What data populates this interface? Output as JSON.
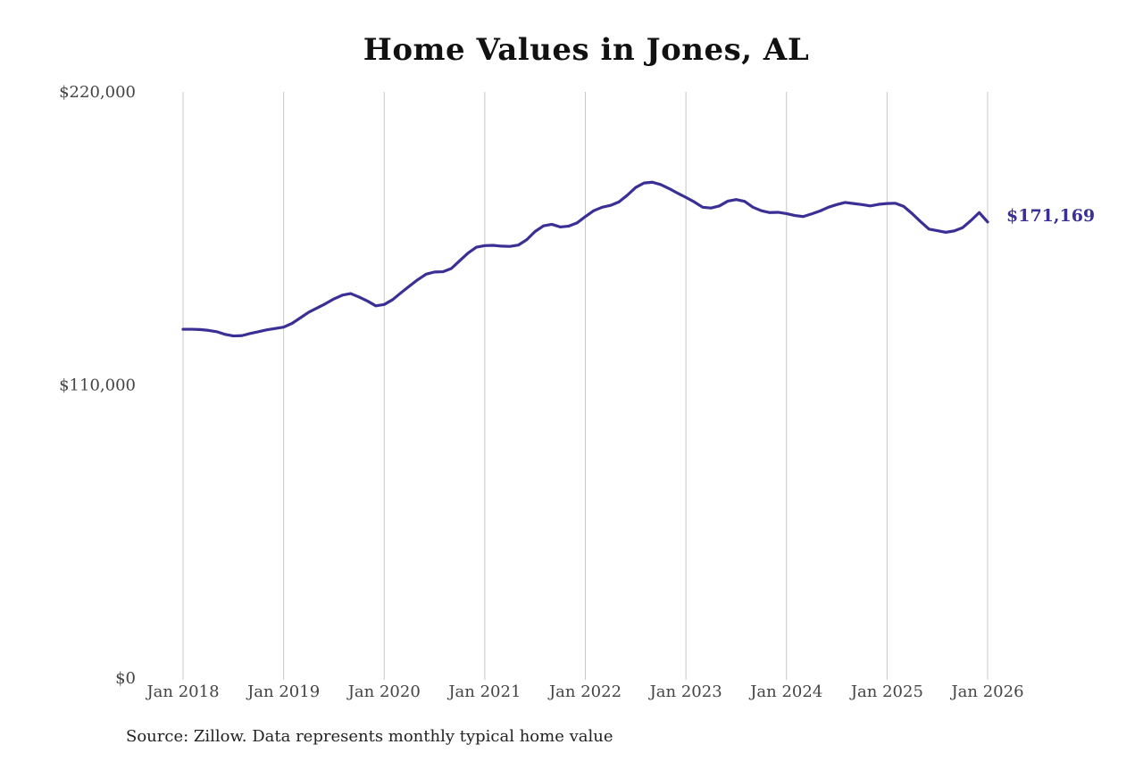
{
  "title": "Home Values in Jones, AL",
  "source": "Source: Zillow. Data represents monthly typical home value",
  "colors": {
    "line": "#3a2f95",
    "grid": "#c8c8c8",
    "axis_text": "#444444",
    "title": "#111111"
  },
  "chart_data": {
    "type": "line",
    "title": "Home Values in Jones, AL",
    "xlabel": "",
    "ylabel": "",
    "ylim": [
      0,
      220000
    ],
    "y_ticks": [
      {
        "value": 0,
        "label": "$0"
      },
      {
        "value": 110000,
        "label": "$110,000"
      },
      {
        "value": 220000,
        "label": "$220,000"
      }
    ],
    "x_ticks": [
      {
        "value": "2018-01",
        "label": "Jan 2018"
      },
      {
        "value": "2019-01",
        "label": "Jan 2019"
      },
      {
        "value": "2020-01",
        "label": "Jan 2020"
      },
      {
        "value": "2021-01",
        "label": "Jan 2021"
      },
      {
        "value": "2022-01",
        "label": "Jan 2022"
      },
      {
        "value": "2023-01",
        "label": "Jan 2023"
      },
      {
        "value": "2024-01",
        "label": "Jan 2024"
      },
      {
        "value": "2025-01",
        "label": "Jan 2025"
      },
      {
        "value": "2026-01",
        "label": "Jan 2026"
      }
    ],
    "grid": "vertical",
    "end_label": "$171,169",
    "series": [
      {
        "x": [
          "2018-01",
          "2018-02",
          "2018-03",
          "2018-04",
          "2018-05",
          "2018-06",
          "2018-07",
          "2018-08",
          "2018-09",
          "2018-10",
          "2018-11",
          "2018-12",
          "2019-01",
          "2019-02",
          "2019-03",
          "2019-04",
          "2019-05",
          "2019-06",
          "2019-07",
          "2019-08",
          "2019-09",
          "2019-10",
          "2019-11",
          "2019-12",
          "2020-01",
          "2020-02",
          "2020-03",
          "2020-04",
          "2020-05",
          "2020-06",
          "2020-07",
          "2020-08",
          "2020-09",
          "2020-10",
          "2020-11",
          "2020-12",
          "2021-01",
          "2021-02",
          "2021-03",
          "2021-04",
          "2021-05",
          "2021-06",
          "2021-07",
          "2021-08",
          "2021-09",
          "2021-10",
          "2021-11",
          "2021-12",
          "2022-01",
          "2022-02",
          "2022-03",
          "2022-04",
          "2022-05",
          "2022-06",
          "2022-07",
          "2022-08",
          "2022-09",
          "2022-10",
          "2022-11",
          "2022-12",
          "2023-01",
          "2023-02",
          "2023-03",
          "2023-04",
          "2023-05",
          "2023-06",
          "2023-07",
          "2023-08",
          "2023-09",
          "2023-10",
          "2023-11",
          "2023-12",
          "2024-01",
          "2024-02",
          "2024-03",
          "2024-04",
          "2024-05",
          "2024-06",
          "2024-07",
          "2024-08",
          "2024-09",
          "2024-10",
          "2024-11",
          "2024-12",
          "2025-01",
          "2025-02",
          "2025-03",
          "2025-04",
          "2025-05",
          "2025-06",
          "2025-07",
          "2025-08",
          "2025-09",
          "2025-10",
          "2025-11",
          "2025-12",
          "2026-01"
        ],
        "values": [
          130900,
          130900,
          130800,
          130500,
          130000,
          129000,
          128400,
          128500,
          129300,
          130000,
          130700,
          131200,
          131700,
          133100,
          135200,
          137300,
          138900,
          140500,
          142300,
          143700,
          144300,
          143000,
          141500,
          139700,
          140200,
          142000,
          144600,
          147100,
          149500,
          151600,
          152400,
          152500,
          153700,
          156600,
          159500,
          161700,
          162300,
          162400,
          162100,
          162000,
          162500,
          164500,
          167600,
          169700,
          170300,
          169300,
          169600,
          170800,
          173200,
          175400,
          176700,
          177400,
          178700,
          181200,
          184100,
          185800,
          186100,
          185200,
          183700,
          182000,
          180400,
          178700,
          176700,
          176400,
          177200,
          179000,
          179600,
          178900,
          176700,
          175400,
          174700,
          174800,
          174300,
          173600,
          173200,
          174200,
          175300,
          176700,
          177700,
          178500,
          178100,
          177700,
          177200,
          177800,
          178100,
          178200,
          177000,
          174300,
          171300,
          168500,
          167900,
          167300,
          167800,
          169000,
          171700,
          174700,
          171169
        ]
      }
    ]
  }
}
